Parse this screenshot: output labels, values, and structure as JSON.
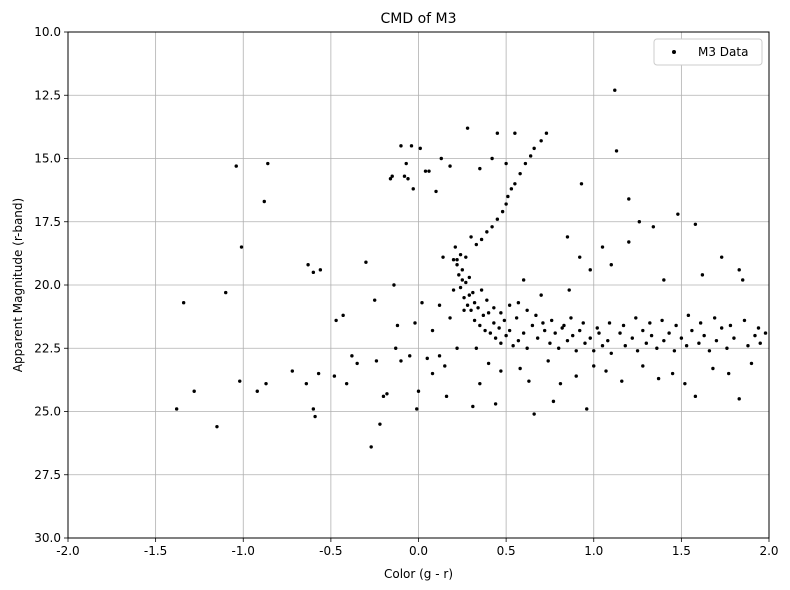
{
  "chart_data": {
    "type": "scatter",
    "title": "CMD of M3",
    "xlabel": "Color (g - r)",
    "ylabel": "Apparent Magnitude (r-band)",
    "xlim": [
      -2.0,
      2.0
    ],
    "ylim": [
      30.0,
      10.0
    ],
    "y_inverted": true,
    "grid": true,
    "legend_position": "top-right",
    "x_ticks": [
      "-2.0",
      "-1.5",
      "-1.0",
      "-0.5",
      "0.0",
      "0.5",
      "1.0",
      "1.5",
      "2.0"
    ],
    "y_ticks": [
      "10.0",
      "12.5",
      "15.0",
      "17.5",
      "20.0",
      "22.5",
      "25.0",
      "27.5",
      "30.0"
    ],
    "marker_color": "#000000",
    "series": [
      {
        "name": "M3 Data",
        "points": [
          [
            -1.38,
            24.9
          ],
          [
            -1.34,
            20.7
          ],
          [
            -1.28,
            24.2
          ],
          [
            -1.15,
            25.6
          ],
          [
            -1.1,
            20.3
          ],
          [
            -1.04,
            15.3
          ],
          [
            -1.02,
            23.8
          ],
          [
            -1.01,
            18.5
          ],
          [
            -0.92,
            24.2
          ],
          [
            -0.88,
            16.7
          ],
          [
            -0.87,
            23.9
          ],
          [
            -0.86,
            15.2
          ],
          [
            -0.72,
            23.4
          ],
          [
            -0.64,
            23.9
          ],
          [
            -0.63,
            19.2
          ],
          [
            -0.6,
            19.5
          ],
          [
            -0.6,
            24.9
          ],
          [
            -0.59,
            25.2
          ],
          [
            -0.57,
            23.5
          ],
          [
            -0.56,
            19.4
          ],
          [
            -0.48,
            23.6
          ],
          [
            -0.47,
            21.4
          ],
          [
            -0.43,
            21.2
          ],
          [
            -0.41,
            23.9
          ],
          [
            -0.38,
            22.8
          ],
          [
            -0.35,
            23.1
          ],
          [
            -0.3,
            19.1
          ],
          [
            -0.27,
            26.4
          ],
          [
            -0.25,
            20.6
          ],
          [
            -0.24,
            23.0
          ],
          [
            -0.22,
            25.5
          ],
          [
            -0.2,
            24.4
          ],
          [
            -0.18,
            24.3
          ],
          [
            -0.16,
            15.8
          ],
          [
            -0.15,
            15.7
          ],
          [
            -0.14,
            20.0
          ],
          [
            -0.13,
            22.5
          ],
          [
            -0.12,
            21.6
          ],
          [
            -0.1,
            14.5
          ],
          [
            -0.1,
            23.0
          ],
          [
            -0.08,
            15.7
          ],
          [
            -0.07,
            15.2
          ],
          [
            -0.06,
            15.8
          ],
          [
            -0.05,
            22.8
          ],
          [
            -0.04,
            14.5
          ],
          [
            -0.03,
            16.2
          ],
          [
            -0.02,
            21.5
          ],
          [
            -0.01,
            24.9
          ],
          [
            0.0,
            24.2
          ],
          [
            0.01,
            14.6
          ],
          [
            0.02,
            20.7
          ],
          [
            0.04,
            15.5
          ],
          [
            0.06,
            15.5
          ],
          [
            0.08,
            23.5
          ],
          [
            0.1,
            16.3
          ],
          [
            0.12,
            22.8
          ],
          [
            0.14,
            18.9
          ],
          [
            0.16,
            24.4
          ],
          [
            0.18,
            15.3
          ],
          [
            0.2,
            19.0
          ],
          [
            0.21,
            18.5
          ],
          [
            0.22,
            19.2
          ],
          [
            0.23,
            19.6
          ],
          [
            0.24,
            20.1
          ],
          [
            0.25,
            19.4
          ],
          [
            0.26,
            20.5
          ],
          [
            0.27,
            19.9
          ],
          [
            0.28,
            20.8
          ],
          [
            0.29,
            19.7
          ],
          [
            0.3,
            21.0
          ],
          [
            0.3,
            18.1
          ],
          [
            0.31,
            20.3
          ],
          [
            0.32,
            21.4
          ],
          [
            0.33,
            18.4
          ],
          [
            0.34,
            20.9
          ],
          [
            0.35,
            21.6
          ],
          [
            0.36,
            18.2
          ],
          [
            0.37,
            21.2
          ],
          [
            0.38,
            21.8
          ],
          [
            0.39,
            17.9
          ],
          [
            0.4,
            21.1
          ],
          [
            0.41,
            21.9
          ],
          [
            0.42,
            17.7
          ],
          [
            0.43,
            21.5
          ],
          [
            0.44,
            22.1
          ],
          [
            0.45,
            17.4
          ],
          [
            0.46,
            21.7
          ],
          [
            0.47,
            22.3
          ],
          [
            0.48,
            17.1
          ],
          [
            0.49,
            21.4
          ],
          [
            0.5,
            16.8
          ],
          [
            0.5,
            22.0
          ],
          [
            0.51,
            16.5
          ],
          [
            0.52,
            21.8
          ],
          [
            0.53,
            16.2
          ],
          [
            0.54,
            22.4
          ],
          [
            0.55,
            16.0
          ],
          [
            0.56,
            21.3
          ],
          [
            0.57,
            22.2
          ],
          [
            0.58,
            15.6
          ],
          [
            0.6,
            21.9
          ],
          [
            0.61,
            15.2
          ],
          [
            0.62,
            22.5
          ],
          [
            0.64,
            14.9
          ],
          [
            0.65,
            21.6
          ],
          [
            0.66,
            14.6
          ],
          [
            0.68,
            22.1
          ],
          [
            0.7,
            14.3
          ],
          [
            0.72,
            21.8
          ],
          [
            0.73,
            14.0
          ],
          [
            0.75,
            22.3
          ],
          [
            0.78,
            21.9
          ],
          [
            0.8,
            22.5
          ],
          [
            0.82,
            21.7
          ],
          [
            0.85,
            22.2
          ],
          [
            0.88,
            22.0
          ],
          [
            0.9,
            22.6
          ],
          [
            0.92,
            21.8
          ],
          [
            0.95,
            22.3
          ],
          [
            0.98,
            22.1
          ],
          [
            1.0,
            22.6
          ],
          [
            1.03,
            21.9
          ],
          [
            1.05,
            22.4
          ],
          [
            1.08,
            22.2
          ],
          [
            1.1,
            22.7
          ],
          [
            1.12,
            12.3
          ],
          [
            1.13,
            14.7
          ],
          [
            1.15,
            21.9
          ],
          [
            1.18,
            22.4
          ],
          [
            1.2,
            16.6
          ],
          [
            1.22,
            22.1
          ],
          [
            1.25,
            22.6
          ],
          [
            1.28,
            21.8
          ],
          [
            1.3,
            22.3
          ],
          [
            1.33,
            22.0
          ],
          [
            1.36,
            22.5
          ],
          [
            1.4,
            22.2
          ],
          [
            1.43,
            21.9
          ],
          [
            1.46,
            22.6
          ],
          [
            1.5,
            22.1
          ],
          [
            1.53,
            22.4
          ],
          [
            1.56,
            21.8
          ],
          [
            1.58,
            17.6
          ],
          [
            1.6,
            22.3
          ],
          [
            1.63,
            22.0
          ],
          [
            1.66,
            22.6
          ],
          [
            1.7,
            22.2
          ],
          [
            1.73,
            21.7
          ],
          [
            1.76,
            22.5
          ],
          [
            1.8,
            22.1
          ],
          [
            1.83,
            24.5
          ],
          [
            1.85,
            19.8
          ],
          [
            1.88,
            22.4
          ],
          [
            1.92,
            22.0
          ],
          [
            1.95,
            22.3
          ],
          [
            1.98,
            21.9
          ],
          [
            0.45,
            14.0
          ],
          [
            0.55,
            14.0
          ],
          [
            0.28,
            13.8
          ],
          [
            0.13,
            15.0
          ],
          [
            0.35,
            15.4
          ],
          [
            0.42,
            15.0
          ],
          [
            0.5,
            15.2
          ],
          [
            0.93,
            16.0
          ],
          [
            0.85,
            18.1
          ],
          [
            0.92,
            18.9
          ],
          [
            1.05,
            18.5
          ],
          [
            1.2,
            18.3
          ],
          [
            1.26,
            17.5
          ],
          [
            1.34,
            17.7
          ],
          [
            1.48,
            17.2
          ],
          [
            1.62,
            19.6
          ],
          [
            1.73,
            18.9
          ],
          [
            1.83,
            19.4
          ],
          [
            1.4,
            19.8
          ],
          [
            1.1,
            19.2
          ],
          [
            0.98,
            19.4
          ],
          [
            0.86,
            20.2
          ],
          [
            0.7,
            20.4
          ],
          [
            0.6,
            19.8
          ],
          [
            0.35,
            23.9
          ],
          [
            0.44,
            24.7
          ],
          [
            0.31,
            24.8
          ],
          [
            0.66,
            25.1
          ],
          [
            0.77,
            24.6
          ],
          [
            0.96,
            24.9
          ],
          [
            1.58,
            24.4
          ],
          [
            0.15,
            23.2
          ],
          [
            0.05,
            22.9
          ],
          [
            0.22,
            22.5
          ],
          [
            0.4,
            23.1
          ],
          [
            0.58,
            23.3
          ],
          [
            0.74,
            23.0
          ],
          [
            0.9,
            23.6
          ],
          [
            1.07,
            23.4
          ],
          [
            1.28,
            23.2
          ],
          [
            1.45,
            23.5
          ],
          [
            1.68,
            23.3
          ],
          [
            1.9,
            23.1
          ],
          [
            0.18,
            21.3
          ],
          [
            0.08,
            21.8
          ],
          [
            0.12,
            20.8
          ],
          [
            0.2,
            20.2
          ],
          [
            0.26,
            21.0
          ],
          [
            0.33,
            22.5
          ],
          [
            0.47,
            23.4
          ],
          [
            0.63,
            23.8
          ],
          [
            0.81,
            23.9
          ],
          [
            1.0,
            23.2
          ],
          [
            1.16,
            23.8
          ],
          [
            1.37,
            23.7
          ],
          [
            1.52,
            23.9
          ],
          [
            1.77,
            23.5
          ],
          [
            0.24,
            18.8
          ],
          [
            0.27,
            18.9
          ],
          [
            0.22,
            19.0
          ],
          [
            0.25,
            19.8
          ],
          [
            0.29,
            20.4
          ],
          [
            0.32,
            20.7
          ],
          [
            0.36,
            20.2
          ],
          [
            0.39,
            20.6
          ],
          [
            0.43,
            20.9
          ],
          [
            0.47,
            21.1
          ],
          [
            0.52,
            20.8
          ],
          [
            0.57,
            20.7
          ],
          [
            0.62,
            21.0
          ],
          [
            0.67,
            21.2
          ],
          [
            0.71,
            21.5
          ],
          [
            0.76,
            21.4
          ],
          [
            0.83,
            21.6
          ],
          [
            0.87,
            21.3
          ],
          [
            0.94,
            21.5
          ],
          [
            1.02,
            21.7
          ],
          [
            1.09,
            21.5
          ],
          [
            1.17,
            21.6
          ],
          [
            1.24,
            21.3
          ],
          [
            1.32,
            21.5
          ],
          [
            1.39,
            21.4
          ],
          [
            1.47,
            21.6
          ],
          [
            1.54,
            21.2
          ],
          [
            1.61,
            21.5
          ],
          [
            1.69,
            21.3
          ],
          [
            1.78,
            21.6
          ],
          [
            1.86,
            21.4
          ],
          [
            1.94,
            21.7
          ]
        ]
      }
    ]
  }
}
